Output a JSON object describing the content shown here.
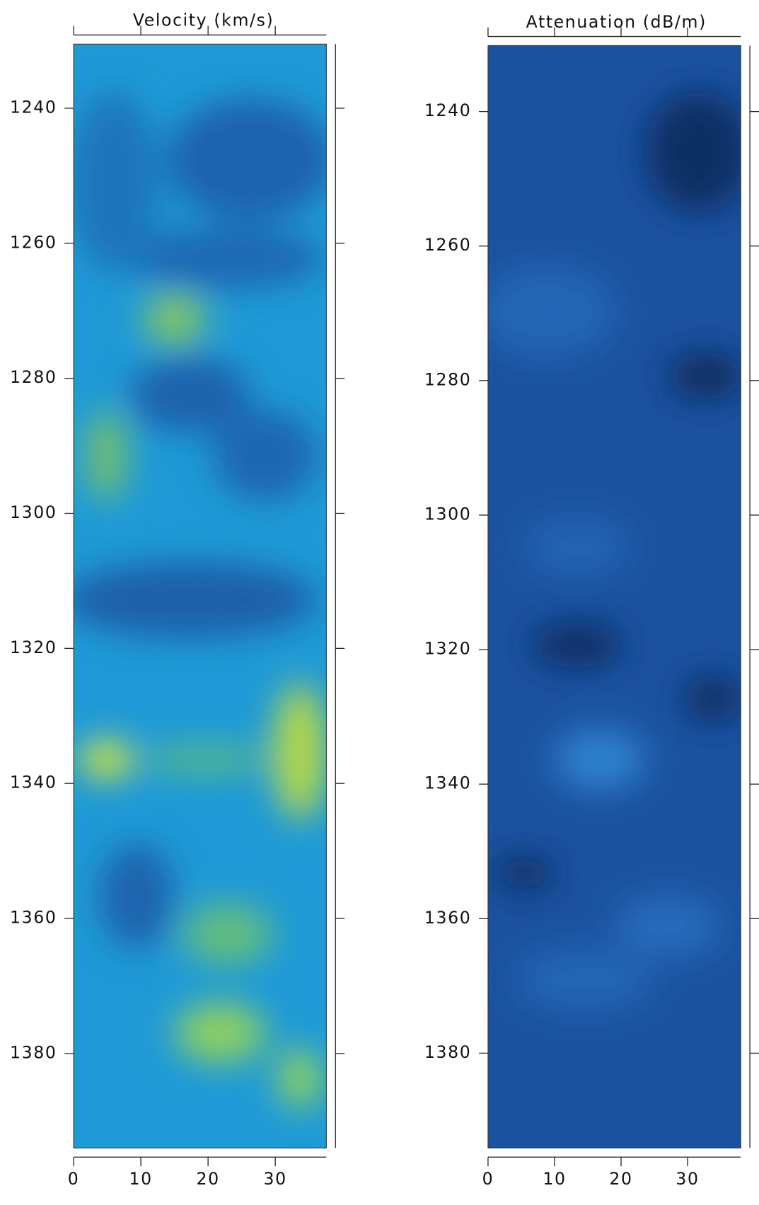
{
  "chart_data": [
    {
      "type": "heatmap",
      "title": "Velocity (km/s)",
      "xlim": [
        0,
        37.6
      ],
      "ylim": [
        1394,
        1230.5
      ],
      "xticks": [
        0,
        10,
        20,
        30
      ],
      "yticks": [
        1240,
        1260,
        1280,
        1300,
        1320,
        1340,
        1360,
        1380
      ]
    },
    {
      "type": "heatmap",
      "title": "Attenuation (dB/m)",
      "xlim": [
        0,
        38
      ],
      "ylim": [
        1394.1,
        1230.2
      ],
      "xticks": [
        0,
        10,
        20,
        30
      ],
      "yticks": [
        1240,
        1260,
        1280,
        1300,
        1320,
        1340,
        1360,
        1380
      ]
    }
  ]
}
